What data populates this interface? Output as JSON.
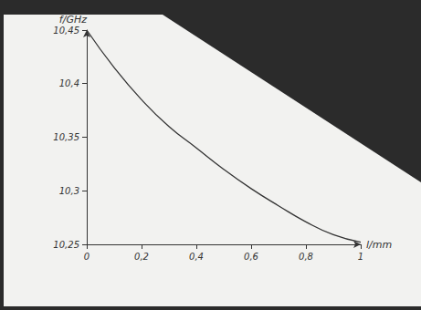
{
  "chart_data": {
    "type": "line",
    "x_label": "l/mm",
    "y_label": "f/GHz",
    "x": [
      0,
      0.1,
      0.2,
      0.3,
      0.4,
      0.5,
      0.6,
      0.7,
      0.8,
      0.9,
      1.0
    ],
    "values": [
      10.45,
      10.415,
      10.385,
      10.36,
      10.34,
      10.32,
      10.302,
      10.286,
      10.271,
      10.259,
      10.252
    ],
    "color": "#333333",
    "xlim": [
      0,
      1
    ],
    "xticks": [
      0,
      {
        "value": 0.2,
        "label": "0,2"
      },
      {
        "value": 0.4,
        "label": "0,4"
      },
      {
        "value": 0.6,
        "label": "0,6"
      },
      {
        "value": 0.8,
        "label": "0,8"
      },
      1
    ],
    "ylim": [
      10.25,
      10.45
    ],
    "yticks": [
      {
        "value": 10.25,
        "label": "10,25"
      },
      {
        "value": 10.3,
        "label": "10,3"
      },
      {
        "value": 10.35,
        "label": "10,35"
      },
      {
        "value": 10.4,
        "label": "10,4"
      },
      {
        "value": 10.45,
        "label": "10,45"
      }
    ],
    "grid": false
  }
}
